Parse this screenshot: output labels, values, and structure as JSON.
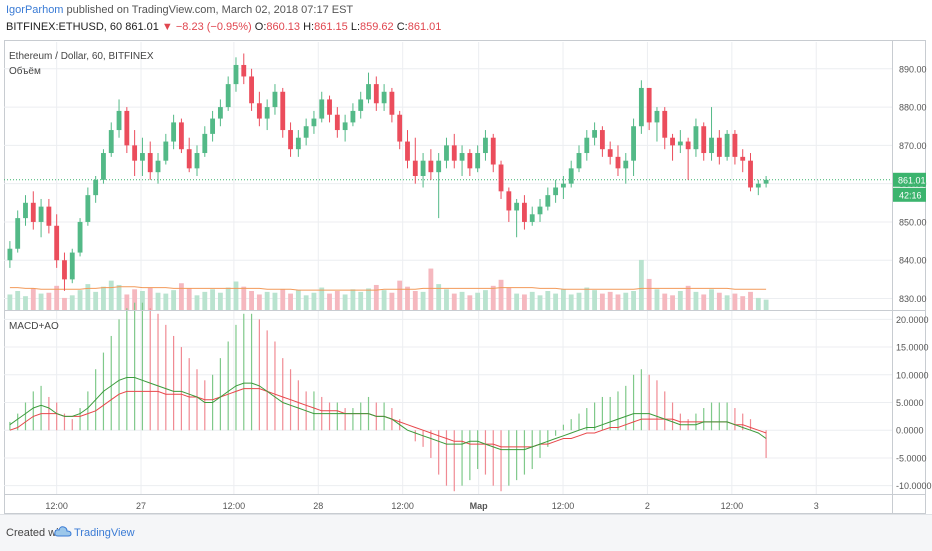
{
  "header": {
    "author": "IgorParhom",
    "published_text": "published on TradingView.com, March 02, 2018 07:17 EST",
    "symbol": "BITFINEX:ETHUSD, 60",
    "last": "861.01",
    "change": "▼ −8.23 (−0.95%)",
    "o_label": "O:",
    "o": "860.13",
    "h_label": "H:",
    "h": "861.15",
    "l_label": "L:",
    "l": "859.62",
    "c_label": "C:",
    "c": "861.01"
  },
  "legend": {
    "main_title": "Ethereum / Dollar, 60, BITFINEX",
    "volume_label": "Объём",
    "indicator_label": "MACD+AO"
  },
  "badges": {
    "price": "861.01",
    "countdown": "42:16"
  },
  "footer": {
    "created_with": "Created with",
    "brand": "TradingView"
  },
  "colors": {
    "up": "#53b987",
    "down": "#eb4d5c",
    "vol_up": "#b9e3cf",
    "vol_down": "#f5b8bf",
    "ma": "#f29a5a",
    "macd": "#3c9b3c",
    "signal": "#e8474b",
    "badge": "#3cb46e"
  },
  "chart_data": [
    {
      "type": "candlestick",
      "title": "Ethereum / Dollar, 60, BITFINEX",
      "y_ticks": [
        830,
        840,
        850,
        860,
        870,
        880,
        890
      ],
      "x_ticks": [
        "12:00",
        "27",
        "12:00",
        "28",
        "12:00",
        "Мар",
        "12:00",
        "2",
        "12:00",
        "3"
      ],
      "ylim": [
        827,
        897
      ],
      "ohlc": [
        [
          840,
          845,
          838,
          843
        ],
        [
          843,
          853,
          842,
          851
        ],
        [
          851,
          857,
          849,
          855
        ],
        [
          855,
          858,
          848,
          850
        ],
        [
          850,
          856,
          846,
          854
        ],
        [
          854,
          856,
          847,
          849
        ],
        [
          849,
          852,
          838,
          840
        ],
        [
          840,
          842,
          832,
          835
        ],
        [
          835,
          843,
          834,
          842
        ],
        [
          842,
          851,
          841,
          850
        ],
        [
          850,
          859,
          849,
          857
        ],
        [
          857,
          862,
          855,
          861
        ],
        [
          861,
          869,
          860,
          868
        ],
        [
          868,
          876,
          867,
          874
        ],
        [
          874,
          882,
          872,
          879
        ],
        [
          879,
          880,
          868,
          870
        ],
        [
          870,
          874,
          862,
          866
        ],
        [
          866,
          872,
          862,
          868
        ],
        [
          868,
          871,
          861,
          863
        ],
        [
          863,
          868,
          860,
          866
        ],
        [
          866,
          873,
          865,
          871
        ],
        [
          871,
          878,
          869,
          876
        ],
        [
          876,
          877,
          868,
          869
        ],
        [
          869,
          872,
          863,
          864
        ],
        [
          864,
          870,
          862,
          868
        ],
        [
          868,
          875,
          867,
          873
        ],
        [
          873,
          879,
          871,
          877
        ],
        [
          877,
          882,
          875,
          880
        ],
        [
          880,
          888,
          879,
          886
        ],
        [
          886,
          893,
          884,
          891
        ],
        [
          891,
          894,
          886,
          888
        ],
        [
          888,
          890,
          879,
          881
        ],
        [
          881,
          884,
          875,
          877
        ],
        [
          877,
          882,
          874,
          880
        ],
        [
          880,
          886,
          878,
          884
        ],
        [
          884,
          885,
          872,
          874
        ],
        [
          874,
          876,
          867,
          869
        ],
        [
          869,
          874,
          867,
          872
        ],
        [
          872,
          877,
          870,
          875
        ],
        [
          875,
          879,
          873,
          877
        ],
        [
          877,
          884,
          876,
          882
        ],
        [
          882,
          883,
          876,
          878
        ],
        [
          878,
          880,
          872,
          874
        ],
        [
          874,
          878,
          871,
          876
        ],
        [
          876,
          881,
          875,
          879
        ],
        [
          879,
          884,
          877,
          882
        ],
        [
          882,
          889,
          881,
          886
        ],
        [
          886,
          888,
          879,
          881
        ],
        [
          881,
          886,
          879,
          884
        ],
        [
          884,
          885,
          876,
          878
        ],
        [
          878,
          879,
          869,
          871
        ],
        [
          871,
          874,
          864,
          866
        ],
        [
          866,
          872,
          860,
          862
        ],
        [
          862,
          868,
          859,
          866
        ],
        [
          866,
          869,
          861,
          863
        ],
        [
          863,
          868,
          851,
          866
        ],
        [
          866,
          872,
          864,
          870
        ],
        [
          870,
          873,
          864,
          866
        ],
        [
          866,
          870,
          862,
          868
        ],
        [
          868,
          869,
          862,
          864
        ],
        [
          864,
          870,
          863,
          868
        ],
        [
          868,
          874,
          866,
          872
        ],
        [
          872,
          873,
          863,
          865
        ],
        [
          865,
          866,
          856,
          858
        ],
        [
          858,
          859,
          850,
          853
        ],
        [
          853,
          856,
          846,
          855
        ],
        [
          855,
          857,
          848,
          850
        ],
        [
          850,
          854,
          849,
          852
        ],
        [
          852,
          856,
          850,
          854
        ],
        [
          854,
          859,
          853,
          857
        ],
        [
          857,
          861,
          855,
          859
        ],
        [
          859,
          862,
          856,
          860
        ],
        [
          860,
          866,
          859,
          864
        ],
        [
          864,
          870,
          863,
          868
        ],
        [
          868,
          874,
          866,
          872
        ],
        [
          872,
          876,
          870,
          874
        ],
        [
          874,
          875,
          867,
          869
        ],
        [
          869,
          871,
          865,
          867
        ],
        [
          867,
          870,
          862,
          864
        ],
        [
          864,
          868,
          860,
          866
        ],
        [
          866,
          877,
          862,
          875
        ],
        [
          875,
          887,
          873,
          885
        ],
        [
          885,
          885,
          874,
          876
        ],
        [
          876,
          880,
          871,
          879
        ],
        [
          879,
          880,
          869,
          872
        ],
        [
          872,
          873,
          866,
          870
        ],
        [
          870,
          874,
          868,
          871
        ],
        [
          871,
          872,
          861,
          869
        ],
        [
          869,
          877,
          867,
          875
        ],
        [
          875,
          876,
          866,
          868
        ],
        [
          868,
          880,
          866,
          872
        ],
        [
          872,
          874,
          865,
          867
        ],
        [
          867,
          874,
          866,
          873
        ],
        [
          873,
          874,
          865,
          867
        ],
        [
          867,
          869,
          863,
          866
        ],
        [
          866,
          868,
          858,
          859
        ],
        [
          859,
          861,
          857,
          860
        ],
        [
          860,
          862,
          859,
          861
        ]
      ],
      "volume": [
        18,
        22,
        16,
        25,
        19,
        20,
        28,
        14,
        17,
        23,
        30,
        21,
        27,
        34,
        29,
        18,
        24,
        22,
        26,
        20,
        19,
        23,
        31,
        25,
        17,
        21,
        24,
        20,
        26,
        33,
        27,
        22,
        18,
        21,
        20,
        24,
        19,
        23,
        17,
        20,
        26,
        19,
        22,
        18,
        24,
        21,
        25,
        29,
        23,
        20,
        34,
        27,
        22,
        21,
        48,
        30,
        24,
        19,
        21,
        17,
        20,
        23,
        28,
        35,
        26,
        19,
        18,
        21,
        17,
        22,
        19,
        24,
        18,
        20,
        26,
        23,
        19,
        21,
        18,
        20,
        22,
        58,
        36,
        24,
        19,
        17,
        22,
        28,
        21,
        18,
        24,
        20,
        17,
        19,
        16,
        21,
        14,
        12
      ],
      "vol_ma": [
        26,
        26,
        25,
        25,
        24,
        24,
        24,
        24,
        24,
        24,
        25,
        25,
        26,
        26,
        27,
        27,
        27,
        26,
        26,
        26,
        26,
        25,
        25,
        25,
        25,
        25,
        25,
        25,
        25,
        25,
        25,
        25,
        25,
        24,
        24,
        24,
        24,
        23,
        23,
        23,
        23,
        23,
        23,
        23,
        23,
        23,
        23,
        23,
        24,
        24,
        24,
        24,
        24,
        25,
        25,
        25,
        25,
        25,
        25,
        25,
        25,
        25,
        25,
        26,
        26,
        26,
        26,
        26,
        25,
        25,
        25,
        24,
        24,
        24,
        24,
        24,
        24,
        24,
        24,
        24,
        24,
        25,
        25,
        25,
        25,
        25,
        25,
        25,
        25,
        25,
        25,
        25,
        25,
        24,
        24,
        24,
        24,
        24
      ]
    },
    {
      "type": "bar+line",
      "title": "MACD+AO",
      "y_ticks": [
        -10,
        -5,
        0,
        5,
        10,
        15,
        20
      ],
      "ylim": [
        -11.5,
        21.5
      ],
      "ao": [
        1.5,
        3,
        5,
        7,
        8,
        6,
        5,
        3,
        2,
        4,
        7,
        11,
        14,
        17,
        20,
        22,
        23,
        23,
        22,
        21,
        19,
        17,
        15,
        13,
        11,
        9,
        10,
        13,
        16,
        19,
        21,
        21,
        20,
        18,
        16,
        13,
        11,
        9,
        7,
        7,
        6,
        5,
        5,
        4,
        4,
        5,
        6,
        5,
        5,
        4,
        2,
        0,
        -2,
        -3,
        -5,
        -8,
        -10,
        -11,
        -10,
        -9,
        -7,
        -8,
        -10,
        -11,
        -10,
        -9,
        -8,
        -7,
        -5,
        -3,
        -1,
        1,
        2,
        3,
        4,
        5,
        6,
        6,
        7,
        8,
        10,
        11,
        10,
        9,
        7,
        5,
        3,
        2,
        3,
        4,
        5,
        5,
        5,
        4,
        3,
        2,
        0,
        -5
      ],
      "macd": [
        1,
        2,
        3,
        4,
        4.5,
        4,
        3,
        2.5,
        2.5,
        3,
        4,
        5.5,
        7,
        8,
        9,
        9.5,
        9.5,
        9,
        8.5,
        8,
        7.5,
        7,
        7,
        6.5,
        6,
        5,
        5,
        6,
        7,
        8,
        8.5,
        8.5,
        8,
        7,
        6,
        5,
        4.5,
        4,
        3.5,
        3,
        3,
        3,
        3,
        3,
        3,
        3,
        3,
        2.5,
        2.5,
        2,
        1,
        0,
        -0.5,
        -1,
        -1.5,
        -2,
        -2.5,
        -2.5,
        -2.5,
        -2,
        -2,
        -2.5,
        -3,
        -3.5,
        -3.5,
        -3.5,
        -3.5,
        -3,
        -2.5,
        -2,
        -1.5,
        -1,
        -0.5,
        0,
        0.5,
        0.5,
        1,
        1.5,
        2,
        2.5,
        3,
        3,
        3,
        2.5,
        2,
        1.5,
        1,
        1,
        1,
        1.5,
        1.5,
        1.5,
        1.5,
        1,
        0.5,
        0,
        -0.5,
        -1.5
      ],
      "signal": [
        0,
        0.5,
        1.5,
        2.5,
        3,
        3,
        3,
        2.5,
        2.5,
        2.5,
        3,
        3.5,
        4.5,
        5.5,
        6.5,
        7,
        7,
        7,
        7,
        7,
        6.5,
        6.5,
        6.5,
        6,
        6,
        5.5,
        5.5,
        6,
        6.5,
        7,
        7.5,
        7.5,
        7.5,
        7,
        6.5,
        6,
        5.5,
        5,
        4.5,
        4,
        3.5,
        3.5,
        3.5,
        3,
        3,
        3,
        3,
        2.5,
        2.5,
        2,
        1.5,
        1,
        0.5,
        0,
        -0.5,
        -1,
        -1.5,
        -2,
        -2,
        -2.5,
        -2.5,
        -2.5,
        -2.5,
        -3,
        -3,
        -3,
        -3,
        -3,
        -2.5,
        -2.5,
        -2,
        -1.5,
        -1.5,
        -1,
        -0.5,
        -0.5,
        0,
        0.5,
        0.5,
        1,
        1.5,
        2,
        2,
        2,
        2,
        2,
        1.5,
        1.5,
        1.5,
        1.5,
        1.5,
        1.5,
        1.5,
        1,
        1,
        0.5,
        0,
        -0.5
      ]
    }
  ]
}
